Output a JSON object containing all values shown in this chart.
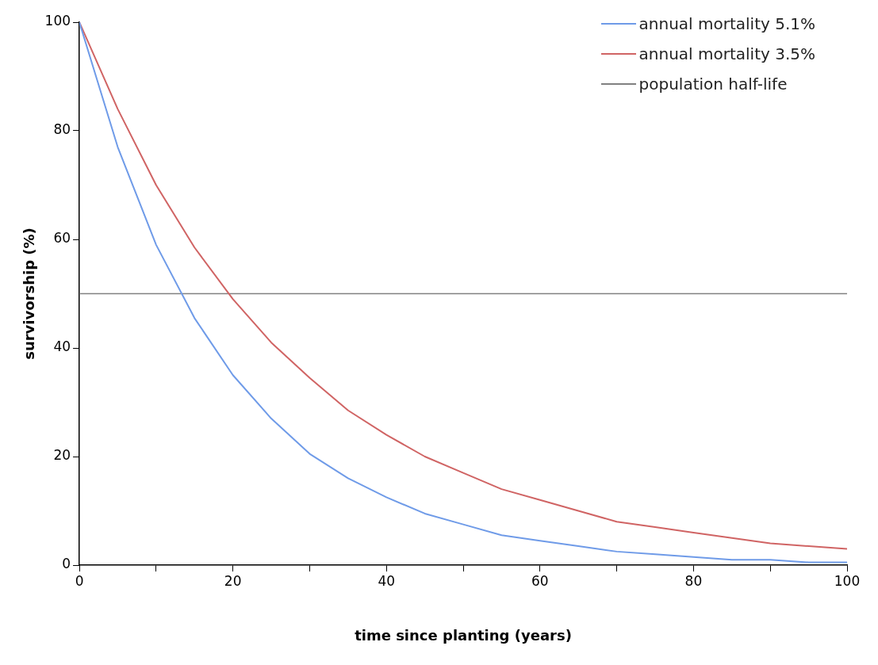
{
  "chart_data": {
    "type": "line",
    "xlabel": "time since planting (years)",
    "ylabel": "survivorship (%)",
    "x": [
      0,
      5,
      10,
      15,
      20,
      25,
      30,
      35,
      40,
      45,
      50,
      55,
      60,
      65,
      70,
      75,
      80,
      85,
      90,
      95,
      100
    ],
    "series": [
      {
        "name": "annual mortality 5.1%",
        "color": "#6f9be8",
        "values": [
          100,
          77,
          59,
          45.5,
          35,
          27,
          20.5,
          16,
          12.5,
          9.5,
          7.5,
          5.5,
          4.5,
          3.5,
          2.5,
          2,
          1.5,
          1,
          1,
          0.5,
          0.5
        ]
      },
      {
        "name": "annual mortality 3.5%",
        "color": "#d06464",
        "values": [
          100,
          84,
          70,
          58.5,
          49,
          41,
          34.5,
          28.5,
          24,
          20,
          17,
          14,
          12,
          10,
          8,
          7,
          6,
          5,
          4,
          3.5,
          3
        ]
      }
    ],
    "ref_lines": [
      {
        "axis": "y",
        "value": 50,
        "label": "population half-life",
        "color": "#808080"
      }
    ],
    "xlim": [
      0,
      100
    ],
    "xticks": [
      0,
      {
        "value": 10,
        "label": null
      },
      20,
      {
        "value": 30,
        "label": null
      },
      40,
      {
        "value": 50,
        "label": null
      },
      60,
      {
        "value": 70,
        "label": null
      },
      80,
      {
        "value": 90,
        "label": null
      },
      100
    ],
    "ylim": [
      0,
      100
    ],
    "yticks": [
      0,
      20,
      40,
      60,
      80,
      100
    ],
    "grid": false,
    "legend": "top right",
    "marker": "none",
    "line_style": "solid"
  }
}
